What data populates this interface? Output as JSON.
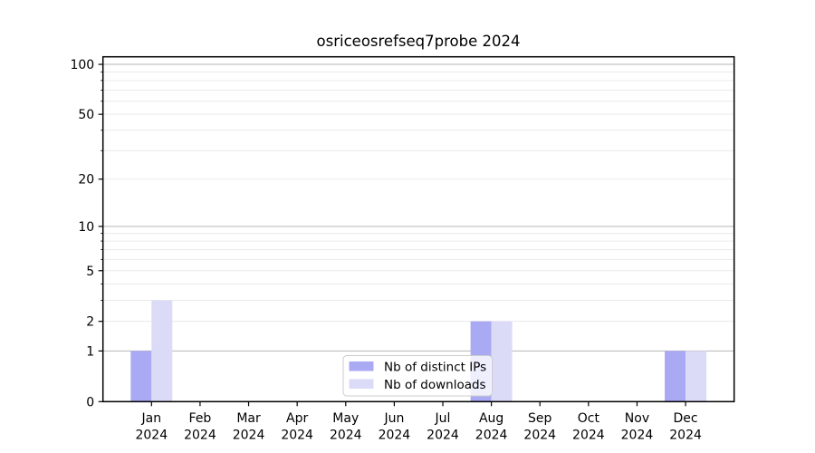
{
  "figure": {
    "background": "#ffffff"
  },
  "chart_data": {
    "type": "bar",
    "title": "osriceosrefseq7probe 2024",
    "x": {
      "months": [
        "Jan",
        "Feb",
        "Mar",
        "Apr",
        "May",
        "Jun",
        "Jul",
        "Aug",
        "Sep",
        "Oct",
        "Nov",
        "Dec"
      ],
      "year": "2024"
    },
    "series": [
      {
        "name": "Nb of distinct IPs",
        "color": "#a9a9f4",
        "values": [
          1,
          0,
          0,
          0,
          0,
          0,
          0,
          2,
          0,
          0,
          0,
          1
        ]
      },
      {
        "name": "Nb of downloads",
        "color": "#dbdbf8",
        "values": [
          3,
          0,
          0,
          0,
          0,
          0,
          0,
          2,
          0,
          0,
          0,
          1
        ]
      }
    ],
    "yscale": "log1p",
    "ylim": [
      0,
      111
    ],
    "ytick_labels": [
      0,
      1,
      2,
      5,
      10,
      20,
      50,
      100
    ],
    "decade_gridlines": [
      1,
      10,
      100
    ],
    "minor_gridlines": [
      2,
      3,
      4,
      5,
      6,
      7,
      8,
      9,
      20,
      30,
      40,
      50,
      60,
      70,
      80,
      90
    ],
    "grid": true,
    "legend": {
      "position": "lower center",
      "entries": [
        "Nb of distinct IPs",
        "Nb of downloads"
      ]
    },
    "colors": {
      "axis": "#000000",
      "grid_decade": "#b6b6b6",
      "grid_minor": "#eaeaea",
      "legend_border": "#cccccc",
      "legend_background": "#ffffff"
    }
  }
}
